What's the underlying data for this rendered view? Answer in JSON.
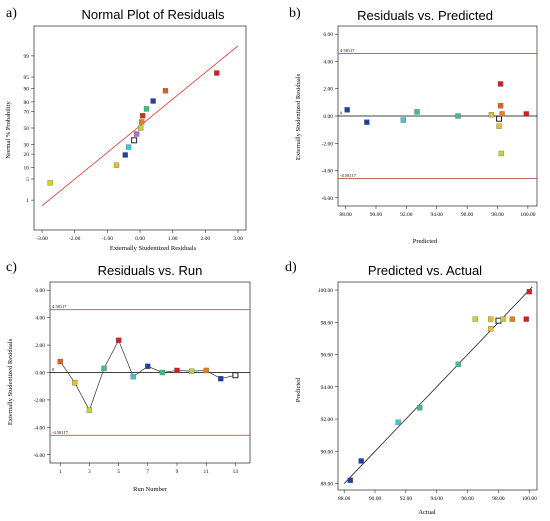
{
  "colors": {
    "frame": "#000000",
    "limit_line": "#c0504d",
    "fit_line": "#e8322c"
  },
  "chart_data": [
    {
      "id": "a",
      "type": "scatter",
      "panel_label": "a)",
      "title": "Normal Plot of Residuals",
      "xlabel": "Externally Studentized Residuals",
      "ylabel": "Normal % Probability",
      "xlim": [
        -3.0,
        3.0
      ],
      "xticks": [
        "-3.00",
        "-2.00",
        "-1.00",
        "0.00",
        "1.00",
        "2.00",
        "3.00"
      ],
      "y_scale": "normal probability",
      "yticks": [
        "1",
        "5",
        "10",
        "20",
        "30",
        "50",
        "70",
        "80",
        "90",
        "95",
        "99"
      ],
      "fit_line": {
        "x": [
          -3.0,
          3.0
        ],
        "y_prob": [
          0.6,
          99.6
        ]
      },
      "points": [
        {
          "x": -2.75,
          "y": 3.85,
          "color": "#c8d62b"
        },
        {
          "x": -0.72,
          "y": 11.5,
          "color": "#e0c030"
        },
        {
          "x": -0.45,
          "y": 19.2,
          "color": "#1f3fa8"
        },
        {
          "x": -0.35,
          "y": 26.9,
          "color": "#3fc4d8"
        },
        {
          "x": -0.18,
          "y": 34.6,
          "color": "#7a7a7a",
          "hollow": true
        },
        {
          "x": -0.1,
          "y": 42.3,
          "color": "#b06fd0"
        },
        {
          "x": 0.02,
          "y": 50.0,
          "color": "#c0d040"
        },
        {
          "x": 0.05,
          "y": 57.7,
          "color": "#e08020"
        },
        {
          "x": 0.08,
          "y": 65.4,
          "color": "#d03020"
        },
        {
          "x": 0.2,
          "y": 73.1,
          "color": "#40c080"
        },
        {
          "x": 0.4,
          "y": 80.8,
          "color": "#1f3fa8"
        },
        {
          "x": 0.78,
          "y": 88.5,
          "color": "#e06020"
        },
        {
          "x": 2.35,
          "y": 96.2,
          "color": "#d02020"
        }
      ]
    },
    {
      "id": "b",
      "type": "scatter",
      "panel_label": "b)",
      "title": "Residuals vs. Predicted",
      "xlabel": "Predicted",
      "ylabel": "Externally Studentized Residuals",
      "xlim": [
        87.5,
        100.6
      ],
      "ylim": [
        -6.6,
        6.6
      ],
      "xticks": [
        "88.00",
        "90.00",
        "92.00",
        "94.00",
        "96.00",
        "98.00",
        "100.00"
      ],
      "yticks": [
        "6.00",
        "4.00",
        "2.00",
        "0.00",
        "-2.00",
        "-4.00",
        "-6.00"
      ],
      "ytick_values": [
        6,
        4,
        2,
        0,
        -2,
        -4,
        -6
      ],
      "xtick_values": [
        88,
        90,
        92,
        94,
        96,
        98,
        100
      ],
      "limit_lines": [
        {
          "y": 4.58,
          "label": "4.58117"
        },
        {
          "y": -4.58,
          "label": "-4.58117"
        }
      ],
      "zero_label": "0",
      "points": [
        {
          "x": 88.1,
          "y": 0.45,
          "color": "#1f3fa8"
        },
        {
          "x": 89.4,
          "y": -0.45,
          "color": "#1f3fa8"
        },
        {
          "x": 91.8,
          "y": -0.3,
          "color": "#3fc4d8"
        },
        {
          "x": 92.7,
          "y": 0.3,
          "color": "#40c080"
        },
        {
          "x": 95.4,
          "y": 0.0,
          "color": "#40c080"
        },
        {
          "x": 97.6,
          "y": 0.1,
          "color": "#e0c030"
        },
        {
          "x": 98.1,
          "y": -0.75,
          "color": "#e0c030"
        },
        {
          "x": 98.2,
          "y": 2.35,
          "color": "#d02020"
        },
        {
          "x": 98.2,
          "y": 0.75,
          "color": "#e06020"
        },
        {
          "x": 98.25,
          "y": -2.75,
          "color": "#c8d62b"
        },
        {
          "x": 98.1,
          "y": -0.2,
          "color": "#7a7a7a",
          "hollow": true
        },
        {
          "x": 98.3,
          "y": 0.15,
          "color": "#e08020"
        },
        {
          "x": 99.9,
          "y": 0.15,
          "color": "#d02020"
        }
      ]
    },
    {
      "id": "c",
      "type": "line",
      "panel_label": "c)",
      "title": "Residuals vs. Run",
      "xlabel": "Run Number",
      "ylabel": "Externally Studentized Residuals",
      "xlim": [
        0.3,
        14
      ],
      "ylim": [
        -6.6,
        6.6
      ],
      "xticks": [
        "1",
        "3",
        "5",
        "7",
        "9",
        "11",
        "13"
      ],
      "xtick_values": [
        1,
        3,
        5,
        7,
        9,
        11,
        13
      ],
      "yticks": [
        "6.00",
        "4.00",
        "2.00",
        "0.00",
        "-2.00",
        "-4.00",
        "-6.00"
      ],
      "ytick_values": [
        6,
        4,
        2,
        0,
        -2,
        -4,
        -6
      ],
      "limit_lines": [
        {
          "y": 4.58,
          "label": "4.58117"
        },
        {
          "y": -4.58,
          "label": "-4.58117"
        }
      ],
      "zero_label": "0",
      "points": [
        {
          "x": 1,
          "y": 0.8,
          "color": "#e06020"
        },
        {
          "x": 2,
          "y": -0.75,
          "color": "#e0c030"
        },
        {
          "x": 3,
          "y": -2.75,
          "color": "#c8d62b"
        },
        {
          "x": 4,
          "y": 0.3,
          "color": "#40c080"
        },
        {
          "x": 5,
          "y": 2.35,
          "color": "#d02020"
        },
        {
          "x": 6,
          "y": -0.3,
          "color": "#3fc4d8"
        },
        {
          "x": 7,
          "y": 0.45,
          "color": "#1f3fa8"
        },
        {
          "x": 8,
          "y": 0.0,
          "color": "#40c080"
        },
        {
          "x": 9,
          "y": 0.15,
          "color": "#d02020"
        },
        {
          "x": 10,
          "y": 0.1,
          "color": "#c0d040"
        },
        {
          "x": 11,
          "y": 0.15,
          "color": "#e08020"
        },
        {
          "x": 12,
          "y": -0.45,
          "color": "#1f3fa8"
        },
        {
          "x": 13,
          "y": -0.2,
          "color": "#7a7a7a",
          "hollow": true
        }
      ]
    },
    {
      "id": "d",
      "type": "scatter",
      "panel_label": "d)",
      "title": "Predicted vs. Actual",
      "xlabel": "Actual",
      "ylabel": "Predicted",
      "xlim": [
        87.6,
        100.5
      ],
      "ylim": [
        87.6,
        100.5
      ],
      "xticks": [
        "88.00",
        "90.00",
        "92.00",
        "94.00",
        "96.00",
        "98.00",
        "100.00"
      ],
      "xtick_values": [
        88,
        90,
        92,
        94,
        96,
        98,
        100
      ],
      "yticks": [
        "100.00",
        "98.00",
        "96.00",
        "94.00",
        "92.00",
        "90.00",
        "88.00"
      ],
      "ytick_values": [
        100,
        98,
        96,
        94,
        92,
        90,
        88
      ],
      "fit_line": {
        "x": [
          88.0,
          100.2
        ],
        "y": [
          88.0,
          100.2
        ]
      },
      "points": [
        {
          "x": 88.4,
          "y": 88.2,
          "color": "#1f3fa8"
        },
        {
          "x": 89.1,
          "y": 89.4,
          "color": "#1f3fa8"
        },
        {
          "x": 91.5,
          "y": 91.8,
          "color": "#3fc4d8"
        },
        {
          "x": 92.9,
          "y": 92.7,
          "color": "#40c080"
        },
        {
          "x": 95.4,
          "y": 95.4,
          "color": "#40c080"
        },
        {
          "x": 96.5,
          "y": 98.2,
          "color": "#c8d62b"
        },
        {
          "x": 97.5,
          "y": 98.2,
          "color": "#e0c030"
        },
        {
          "x": 97.5,
          "y": 97.6,
          "color": "#e0c030"
        },
        {
          "x": 98.0,
          "y": 98.1,
          "color": "#7a7a7a",
          "hollow": true
        },
        {
          "x": 98.3,
          "y": 98.2,
          "color": "#c0d040"
        },
        {
          "x": 98.9,
          "y": 98.2,
          "color": "#e08020"
        },
        {
          "x": 99.8,
          "y": 98.2,
          "color": "#d02020"
        },
        {
          "x": 100.0,
          "y": 99.9,
          "color": "#d02020"
        }
      ]
    }
  ]
}
